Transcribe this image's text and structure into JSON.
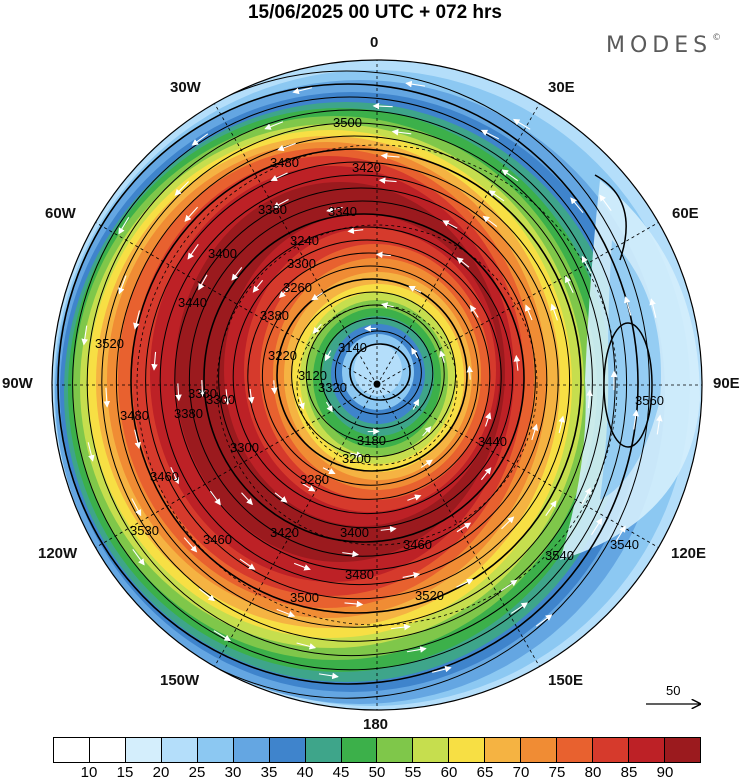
{
  "header": {
    "title": "15/06/2025  00 UTC  + 072 hrs",
    "brand": "MODES",
    "brand_mark": "©"
  },
  "longitude_labels": [
    "0",
    "30E",
    "60E",
    "90E",
    "120E",
    "150E",
    "180",
    "150W",
    "120W",
    "90W",
    "60W",
    "30W"
  ],
  "contour_labels": [
    "3500",
    "3480",
    "3420",
    "3380",
    "3340",
    "3240",
    "3400",
    "3260",
    "3440",
    "3380",
    "3300",
    "3220",
    "3120",
    "3140",
    "3300",
    "3380",
    "3200",
    "3180",
    "3280",
    "3460",
    "3530",
    "3460",
    "3380",
    "3320",
    "3300",
    "3420",
    "3460",
    "3440",
    "3400",
    "3500",
    "3480",
    "3520",
    "3540",
    "3540",
    "3560",
    "3520",
    "3480"
  ],
  "colorbar": {
    "ticks": [
      "10",
      "15",
      "20",
      "25",
      "30",
      "35",
      "40",
      "45",
      "50",
      "55",
      "60",
      "65",
      "70",
      "75",
      "80",
      "85",
      "90"
    ],
    "colors": [
      "#ffffff",
      "#d4eefc",
      "#b4defa",
      "#8cc8f2",
      "#64a6e2",
      "#3f84cc",
      "#3ea58a",
      "#3cb04a",
      "#7fc74a",
      "#c6de4e",
      "#f7df44",
      "#f5b342",
      "#f08c34",
      "#e8612f",
      "#d63a2c",
      "#bd2126",
      "#9b1a1e"
    ]
  },
  "vector_reference": {
    "label": "50"
  },
  "field_style": {
    "land_color": "#ececec",
    "contour_color": "#000000",
    "arrow_color": "#ffffff"
  }
}
